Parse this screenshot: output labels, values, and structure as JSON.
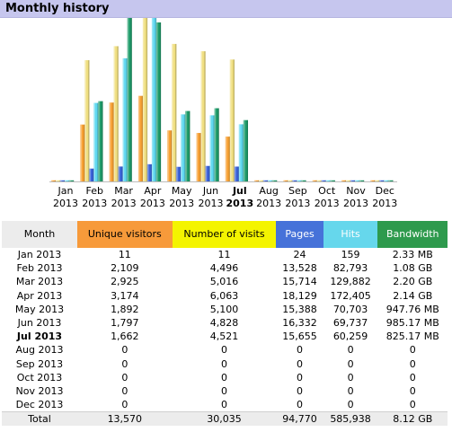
{
  "panel": {
    "title": "Monthly history"
  },
  "colors": {
    "unique": "#f7a033",
    "visits": "#f0df80",
    "pages": "#3b63d9",
    "hits": "#5fd8f0",
    "bandwidth": "#1f9c6a"
  },
  "chart_data": {
    "type": "bar",
    "categories": [
      "Jan",
      "Feb",
      "Mar",
      "Apr",
      "May",
      "Jun",
      "Jul",
      "Aug",
      "Sep",
      "Oct",
      "Nov",
      "Dec"
    ],
    "years": [
      "2013",
      "2013",
      "2013",
      "2013",
      "2013",
      "2013",
      "2013",
      "2013",
      "2013",
      "2013",
      "2013",
      "2013"
    ],
    "current_index": 6,
    "series": [
      {
        "name": "Unique visitors",
        "values": [
          11,
          2109,
          2925,
          3174,
          1892,
          1797,
          1662,
          0,
          0,
          0,
          0,
          0
        ]
      },
      {
        "name": "Number of visits",
        "values": [
          11,
          4496,
          5016,
          6063,
          5100,
          4828,
          4521,
          0,
          0,
          0,
          0,
          0
        ]
      },
      {
        "name": "Pages",
        "values": [
          24,
          13528,
          15714,
          18129,
          15388,
          16332,
          15655,
          0,
          0,
          0,
          0,
          0
        ]
      },
      {
        "name": "Hits",
        "values": [
          159,
          82793,
          129882,
          172405,
          70703,
          69737,
          60259,
          0,
          0,
          0,
          0,
          0
        ]
      },
      {
        "name": "Bandwidth",
        "values": [
          2.33,
          1080,
          2200,
          2140,
          947.76,
          985.17,
          825.17,
          0,
          0,
          0,
          0,
          0
        ]
      }
    ]
  },
  "table": {
    "headers": {
      "month": "Month",
      "unique": "Unique visitors",
      "visits": "Number of visits",
      "pages": "Pages",
      "hits": "Hits",
      "bandwidth": "Bandwidth"
    },
    "rows": [
      {
        "month": "Jan 2013",
        "unique": "11",
        "visits": "11",
        "pages": "24",
        "hits": "159",
        "bandwidth": "2.33 MB"
      },
      {
        "month": "Feb 2013",
        "unique": "2,109",
        "visits": "4,496",
        "pages": "13,528",
        "hits": "82,793",
        "bandwidth": "1.08 GB"
      },
      {
        "month": "Mar 2013",
        "unique": "2,925",
        "visits": "5,016",
        "pages": "15,714",
        "hits": "129,882",
        "bandwidth": "2.20 GB"
      },
      {
        "month": "Apr 2013",
        "unique": "3,174",
        "visits": "6,063",
        "pages": "18,129",
        "hits": "172,405",
        "bandwidth": "2.14 GB"
      },
      {
        "month": "May 2013",
        "unique": "1,892",
        "visits": "5,100",
        "pages": "15,388",
        "hits": "70,703",
        "bandwidth": "947.76 MB"
      },
      {
        "month": "Jun 2013",
        "unique": "1,797",
        "visits": "4,828",
        "pages": "16,332",
        "hits": "69,737",
        "bandwidth": "985.17 MB"
      },
      {
        "month": "Jul 2013",
        "unique": "1,662",
        "visits": "4,521",
        "pages": "15,655",
        "hits": "60,259",
        "bandwidth": "825.17 MB"
      },
      {
        "month": "Aug 2013",
        "unique": "0",
        "visits": "0",
        "pages": "0",
        "hits": "0",
        "bandwidth": "0"
      },
      {
        "month": "Sep 2013",
        "unique": "0",
        "visits": "0",
        "pages": "0",
        "hits": "0",
        "bandwidth": "0"
      },
      {
        "month": "Oct 2013",
        "unique": "0",
        "visits": "0",
        "pages": "0",
        "hits": "0",
        "bandwidth": "0"
      },
      {
        "month": "Nov 2013",
        "unique": "0",
        "visits": "0",
        "pages": "0",
        "hits": "0",
        "bandwidth": "0"
      },
      {
        "month": "Dec 2013",
        "unique": "0",
        "visits": "0",
        "pages": "0",
        "hits": "0",
        "bandwidth": "0"
      }
    ],
    "total": {
      "month": "Total",
      "unique": "13,570",
      "visits": "30,035",
      "pages": "94,770",
      "hits": "585,938",
      "bandwidth": "8.12 GB"
    }
  }
}
